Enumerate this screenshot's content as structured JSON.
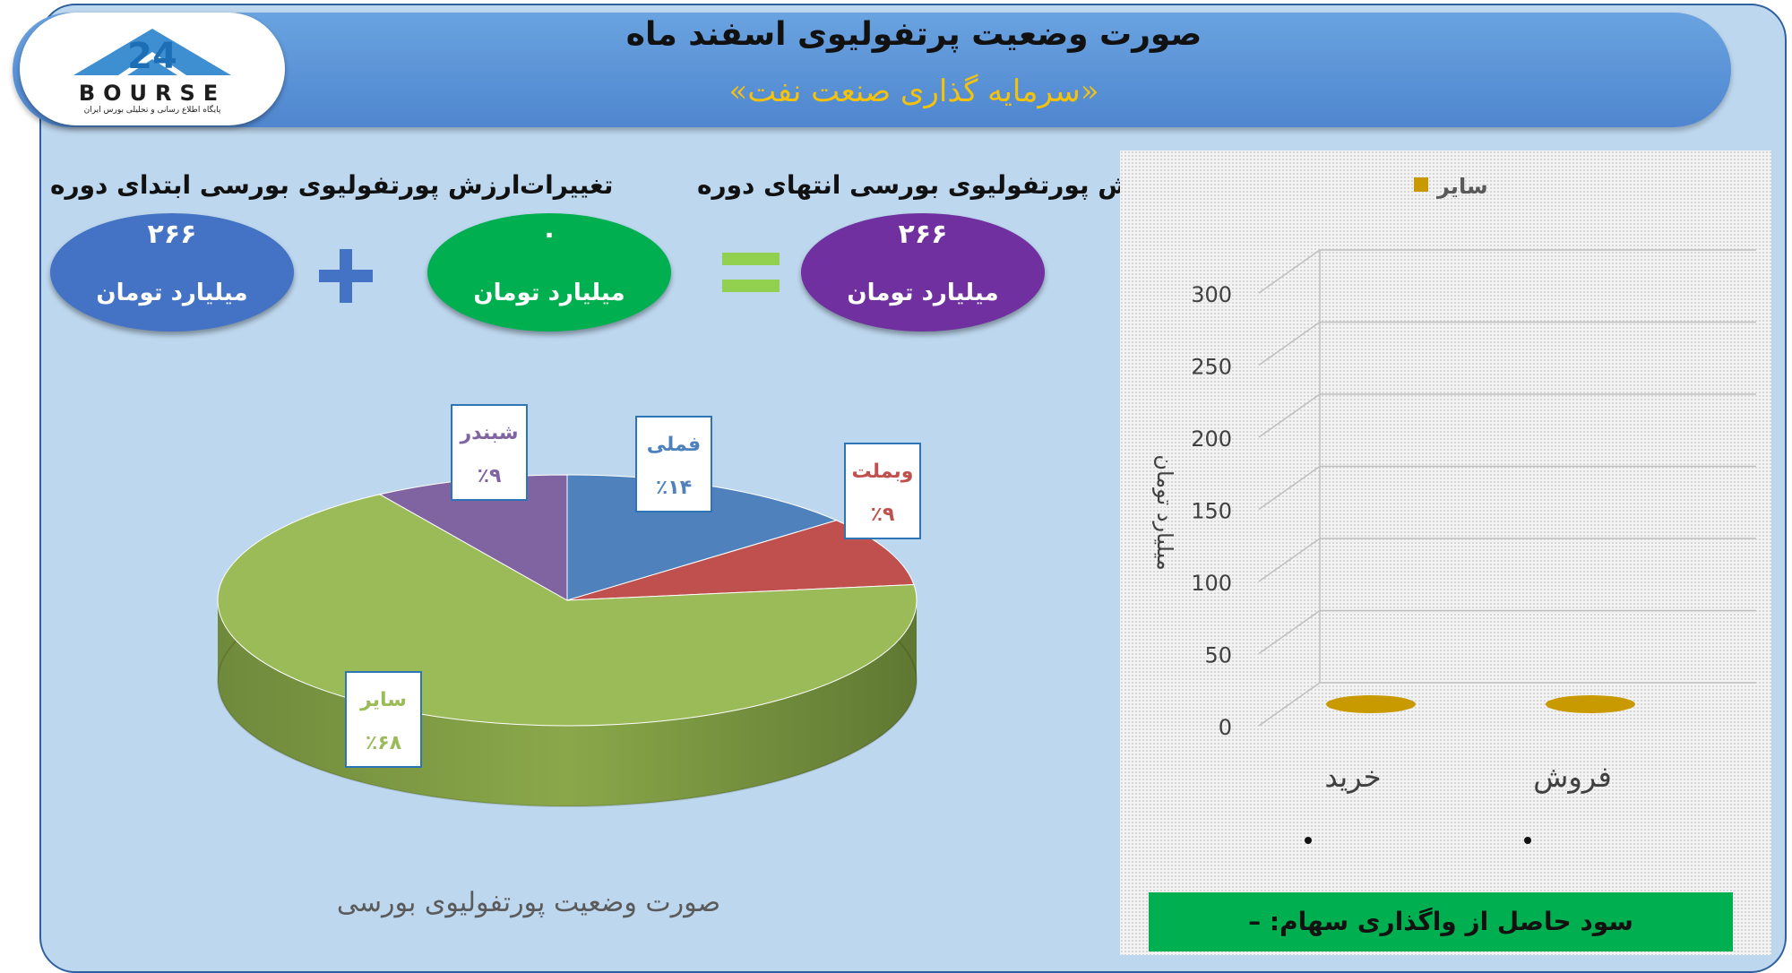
{
  "header": {
    "title": "صورت وضعیت پرتفولیوی اسفند ماه",
    "subtitle": "«سرمایه گذاری صنعت نفت»"
  },
  "logo": {
    "number": "24",
    "word": "BOURSE",
    "tagline": "پایگاه اطلاع رسانی و تحلیلی بورس ایران"
  },
  "summary": {
    "end": {
      "label": "ارزش پورتفولیوی بورسی انتهای دوره",
      "value": "۲۶۶",
      "unit": "میلیارد تومان",
      "color": "#7030a0"
    },
    "change": {
      "label": "تغییرات",
      "value": "۰",
      "unit": "میلیارد تومان",
      "color": "#00b050"
    },
    "start": {
      "label": "ارزش پورتفولیوی بورسی ابتدای دوره",
      "value": "۲۶۶",
      "unit": "میلیارد تومان",
      "color": "#4472c4"
    },
    "plus_sign": "+",
    "equals_sign": "="
  },
  "pie_caption": "صورت وضعیت پورتفولیوی بورسی",
  "profit_text": "سود حاصل از واگذاری سهام: –",
  "chart_data": [
    {
      "type": "pie",
      "title": "صورت وضعیت پورتفولیوی بورسی",
      "slices": [
        {
          "label": "فملی",
          "value": 14,
          "display": "٪۱۴",
          "color": "#4f81bd",
          "label_color": "#4f81bd"
        },
        {
          "label": "وبملت",
          "value": 9,
          "display": "٪۹",
          "color": "#c0504d",
          "label_color": "#c0504d"
        },
        {
          "label": "سایر",
          "value": 68,
          "display": "٪۶۸",
          "color": "#9bbb59",
          "label_color": "#9bbb59"
        },
        {
          "label": "شبندر",
          "value": 9,
          "display": "٪۹",
          "color": "#8064a2",
          "label_color": "#8064a2"
        }
      ]
    },
    {
      "type": "bar",
      "categories": [
        "فروش",
        "خرید"
      ],
      "series": [
        {
          "name": "سایر",
          "values": [
            0,
            0
          ],
          "color": "#c89a00"
        }
      ],
      "ylabel": "میلیارد تومان",
      "ylim": [
        0,
        300
      ],
      "yticks": [
        0,
        50,
        100,
        150,
        200,
        250,
        300
      ],
      "grid": true,
      "legend": "top"
    }
  ]
}
